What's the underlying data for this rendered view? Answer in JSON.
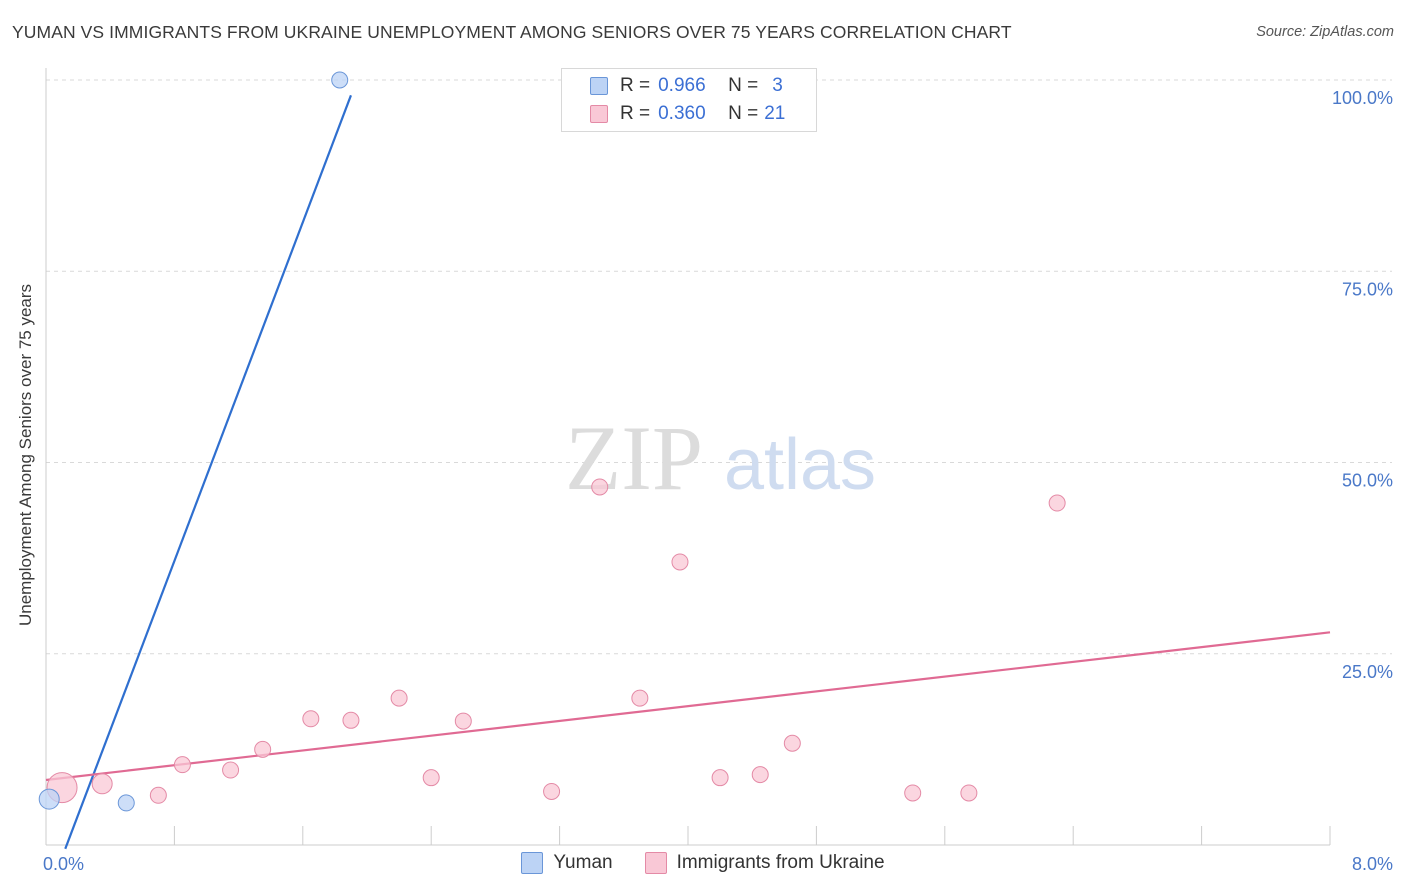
{
  "title": "YUMAN VS IMMIGRANTS FROM UKRAINE UNEMPLOYMENT AMONG SENIORS OVER 75 YEARS CORRELATION CHART",
  "source": "Source: ZipAtlas.com",
  "watermark": {
    "zip": "ZIP",
    "atlas": "atlas"
  },
  "legend": {
    "r_label": "R =",
    "n_label": "N =",
    "items": [
      {
        "name": "Yuman",
        "r": "0.966",
        "n": "3",
        "fill": "#bcd3f5",
        "stroke": "#6a96d8"
      },
      {
        "name": "Immigrants from Ukraine",
        "r": "0.360",
        "n": "21",
        "fill": "#f9c8d6",
        "stroke": "#e48aa6"
      }
    ]
  },
  "colors": {
    "blue_line": "#2f6fcf",
    "pink_line": "#e06a93",
    "tick_label": "#4a78c8",
    "grid": "#d9d9d9"
  },
  "chart_data": {
    "type": "scatter",
    "title": "YUMAN VS IMMIGRANTS FROM UKRAINE UNEMPLOYMENT AMONG SENIORS OVER 75 YEARS CORRELATION CHART",
    "xlabel": "",
    "ylabel": "Unemployment Among Seniors over 75 years",
    "xlim": [
      0,
      8
    ],
    "ylim": [
      0,
      100
    ],
    "x_tick_labels": [
      "0.0%",
      "8.0%"
    ],
    "y_tick_labels": [
      "100.0%",
      "75.0%",
      "50.0%",
      "25.0%"
    ],
    "y_ticks": [
      100,
      75,
      50,
      25
    ],
    "grid": true,
    "series": [
      {
        "name": "Yuman",
        "points": [
          [
            0.02,
            6.0,
            2
          ],
          [
            0.5,
            5.5,
            1
          ],
          [
            1.83,
            100.0,
            1
          ]
        ],
        "trend": {
          "x": [
            0.12,
            1.9
          ],
          "y": [
            -0.5,
            98.0
          ]
        }
      },
      {
        "name": "Immigrants from Ukraine",
        "points": [
          [
            0.1,
            7.5,
            3
          ],
          [
            0.35,
            8.0,
            2
          ],
          [
            0.7,
            6.5,
            1
          ],
          [
            0.85,
            10.5,
            1
          ],
          [
            1.15,
            9.8,
            1
          ],
          [
            1.35,
            12.5,
            1
          ],
          [
            1.65,
            16.5,
            1
          ],
          [
            1.9,
            16.3,
            1
          ],
          [
            2.2,
            19.2,
            1
          ],
          [
            2.4,
            8.8,
            1
          ],
          [
            2.6,
            16.2,
            1
          ],
          [
            3.15,
            7.0,
            1
          ],
          [
            3.45,
            46.8,
            1
          ],
          [
            3.7,
            19.2,
            1
          ],
          [
            3.95,
            37.0,
            1
          ],
          [
            4.2,
            8.8,
            1
          ],
          [
            4.45,
            9.2,
            1
          ],
          [
            4.65,
            13.3,
            1
          ],
          [
            5.4,
            6.8,
            1
          ],
          [
            5.75,
            6.8,
            1
          ],
          [
            6.3,
            44.7,
            1
          ]
        ],
        "trend": {
          "x": [
            0.0,
            8.0
          ],
          "y": [
            8.5,
            27.8
          ]
        }
      }
    ]
  }
}
